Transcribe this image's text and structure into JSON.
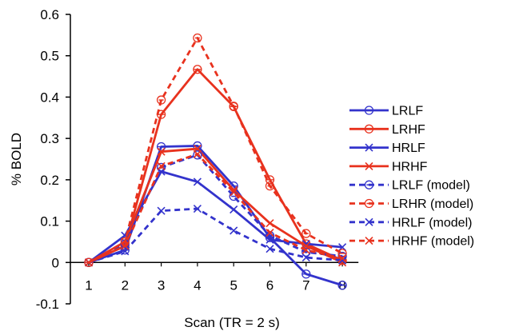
{
  "chart_data": {
    "type": "line",
    "title": "",
    "xlabel": "Scan (TR = 2 s)",
    "ylabel": "% BOLD",
    "x": [
      1,
      2,
      3,
      4,
      5,
      6,
      7,
      8
    ],
    "xlim": [
      0.4,
      8.4
    ],
    "ylim": [
      -0.1,
      0.6
    ],
    "yticks": [
      -0.1,
      0,
      0.1,
      0.2,
      0.3,
      0.4,
      0.5,
      0.6
    ],
    "ytick_labels": [
      "-0.1",
      "0",
      "0.1",
      "0.2",
      "0.3",
      "0.4",
      "0.5",
      "0.6"
    ],
    "xticks": [
      1,
      2,
      3,
      4,
      5,
      6,
      7,
      8
    ],
    "xtick_labels": [
      "1",
      "2",
      "3",
      "4",
      "5",
      "6",
      "7",
      "8"
    ],
    "grid": false,
    "legend_position": "right",
    "series": [
      {
        "name": "LRLF",
        "color": "#3333cc",
        "dash": "solid",
        "marker": "circle",
        "values": [
          0,
          0.03,
          0.28,
          0.282,
          0.185,
          0.06,
          -0.028,
          -0.055
        ]
      },
      {
        "name": "LRHF",
        "color": "#e8321e",
        "dash": "solid",
        "marker": "circle",
        "values": [
          0,
          0.04,
          0.358,
          0.467,
          0.377,
          0.2,
          0.045,
          0.005
        ]
      },
      {
        "name": "HRLF",
        "color": "#3333cc",
        "dash": "solid",
        "marker": "x",
        "values": [
          0,
          0.065,
          0.22,
          0.195,
          0.128,
          0.055,
          0.045,
          0.037
        ]
      },
      {
        "name": "HRHF",
        "color": "#e8321e",
        "dash": "solid",
        "marker": "x",
        "values": [
          0,
          0.05,
          0.268,
          0.275,
          0.175,
          0.095,
          0.04,
          0.0
        ]
      },
      {
        "name": "LRLF (model)",
        "color": "#3333cc",
        "dash": "dashed",
        "marker": "circle-dot",
        "values": [
          0,
          0.045,
          0.23,
          0.26,
          0.16,
          0.065,
          0.025,
          0.015
        ]
      },
      {
        "name": "LRHR (model)",
        "color": "#e8321e",
        "dash": "dashed",
        "marker": "circle-dot",
        "values": [
          0,
          0.05,
          0.393,
          0.543,
          0.378,
          0.185,
          0.07,
          0.022
        ]
      },
      {
        "name": "HRLF (model)",
        "color": "#3333cc",
        "dash": "dashed",
        "marker": "x",
        "values": [
          0,
          0.027,
          0.125,
          0.13,
          0.077,
          0.033,
          0.012,
          0.005
        ]
      },
      {
        "name": "HRHF (model)",
        "color": "#e8321e",
        "dash": "dashed",
        "marker": "x",
        "values": [
          0,
          0.04,
          0.233,
          0.262,
          0.17,
          0.072,
          0.03,
          0.01
        ]
      }
    ]
  }
}
